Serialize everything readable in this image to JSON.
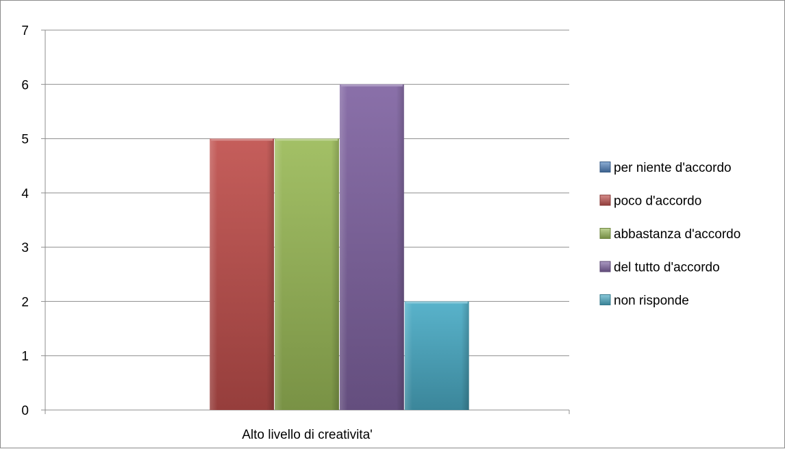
{
  "chart_data": {
    "type": "bar",
    "categories": [
      "Alto livello di creativita'"
    ],
    "series": [
      {
        "name": "per niente d'accordo",
        "values": [
          0
        ],
        "color": "#4F81BD"
      },
      {
        "name": "poco d'accordo",
        "values": [
          5
        ],
        "color": "#C0504D"
      },
      {
        "name": "abbastanza d'accordo",
        "values": [
          5
        ],
        "color": "#9BBB59"
      },
      {
        "name": "del tutto d'accordo",
        "values": [
          6
        ],
        "color": "#8064A2"
      },
      {
        "name": "non risponde",
        "values": [
          2
        ],
        "color": "#4BACC6"
      }
    ],
    "ylim": [
      0,
      7
    ],
    "yticks": [
      0,
      1,
      2,
      3,
      4,
      5,
      6,
      7
    ],
    "grid": true,
    "legend_position": "right",
    "title": "",
    "xlabel": "",
    "ylabel": ""
  }
}
